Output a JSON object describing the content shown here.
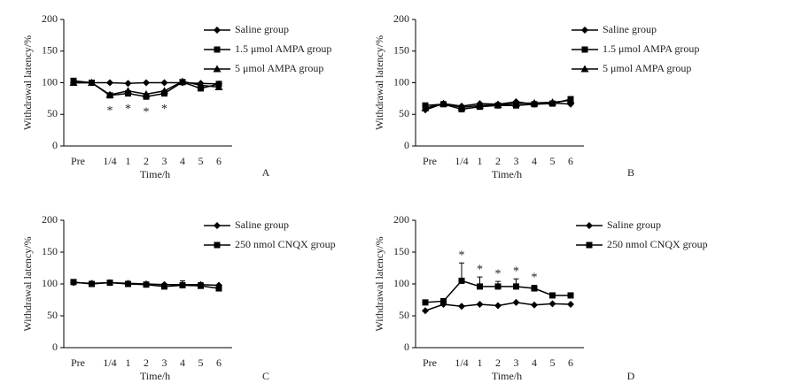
{
  "chart_data": [
    {
      "type": "line",
      "panel": "A",
      "x_label": "Time/h",
      "y_label": "Withdrawal latency/%",
      "categories": [
        "Pre",
        null,
        "1/4",
        "1",
        "2",
        "3",
        "4",
        "5",
        "6"
      ],
      "ylim": [
        0,
        200
      ],
      "yticks": [
        0,
        50,
        100,
        150,
        200
      ],
      "series": [
        {
          "name": "Saline group",
          "color": "#000000",
          "marker": "diamond",
          "values": [
            100,
            100,
            100,
            99,
            100,
            100,
            100,
            99,
            98
          ]
        },
        {
          "name": "1.5 μmol AMPA group",
          "color": "#000000",
          "marker": "square",
          "values": [
            103,
            100,
            80,
            83,
            78,
            83,
            101,
            91,
            98
          ]
        },
        {
          "name": "5 μmol AMPA group",
          "color": "#000000",
          "marker": "triangle",
          "values": [
            100,
            100,
            81,
            87,
            82,
            87,
            102,
            96,
            93
          ]
        }
      ],
      "significance": [
        null,
        null,
        "*",
        "*",
        "*",
        "*",
        null,
        null,
        null
      ]
    },
    {
      "type": "line",
      "panel": "B",
      "x_label": "Time/h",
      "y_label": "Withdrawal latency/%",
      "categories": [
        "Pre",
        null,
        "1/4",
        "1",
        "2",
        "3",
        "4",
        "5",
        "6"
      ],
      "ylim": [
        0,
        200
      ],
      "yticks": [
        0,
        50,
        100,
        150,
        200
      ],
      "series": [
        {
          "name": "Saline group",
          "color": "#000000",
          "marker": "diamond",
          "values": [
            57,
            67,
            63,
            67,
            66,
            70,
            66,
            68,
            66
          ]
        },
        {
          "name": "1.5 μmol AMPA group",
          "color": "#000000",
          "marker": "square",
          "values": [
            64,
            66,
            58,
            62,
            64,
            64,
            66,
            67,
            74
          ]
        },
        {
          "name": "5 μmol AMPA group",
          "color": "#000000",
          "marker": "triangle",
          "values": [
            60,
            67,
            61,
            64,
            65,
            67,
            68,
            69,
            72
          ]
        }
      ]
    },
    {
      "type": "line",
      "panel": "C",
      "x_label": "Time/h",
      "y_label": "Withdrawal latency/%",
      "categories": [
        "Pre",
        null,
        "1/4",
        "1",
        "2",
        "3",
        "4",
        "5",
        "6"
      ],
      "ylim": [
        0,
        200
      ],
      "yticks": [
        0,
        50,
        100,
        150,
        200
      ],
      "series": [
        {
          "name": "Saline group",
          "color": "#000000",
          "marker": "diamond",
          "values": [
            102,
            101,
            102,
            101,
            100,
            99,
            99,
            99,
            98
          ]
        },
        {
          "name": "250 nmol CNQX group",
          "color": "#000000",
          "marker": "square",
          "values": [
            103,
            100,
            102,
            100,
            99,
            96,
            98,
            97,
            93
          ],
          "errors": [
            0,
            2,
            2,
            3,
            2,
            3,
            7,
            5,
            6
          ]
        }
      ]
    },
    {
      "type": "line",
      "panel": "D",
      "x_label": "Time/h",
      "y_label": "Withdrawal latency/%",
      "categories": [
        "Pre",
        null,
        "1/4",
        "1",
        "2",
        "3",
        "4",
        "5",
        "6"
      ],
      "ylim": [
        0,
        200
      ],
      "yticks": [
        0,
        50,
        100,
        150,
        200
      ],
      "series": [
        {
          "name": "Saline group",
          "color": "#000000",
          "marker": "diamond",
          "values": [
            58,
            68,
            65,
            68,
            66,
            71,
            67,
            69,
            68
          ]
        },
        {
          "name": "250 nmol CNQX group",
          "color": "#000000",
          "marker": "square",
          "values": [
            71,
            73,
            105,
            96,
            96,
            96,
            93,
            82,
            82
          ],
          "errors": [
            0,
            3,
            28,
            15,
            8,
            12,
            5,
            3,
            3
          ]
        }
      ],
      "significance": [
        null,
        null,
        "*",
        "*",
        "*",
        "*",
        "*",
        null,
        null
      ]
    }
  ]
}
